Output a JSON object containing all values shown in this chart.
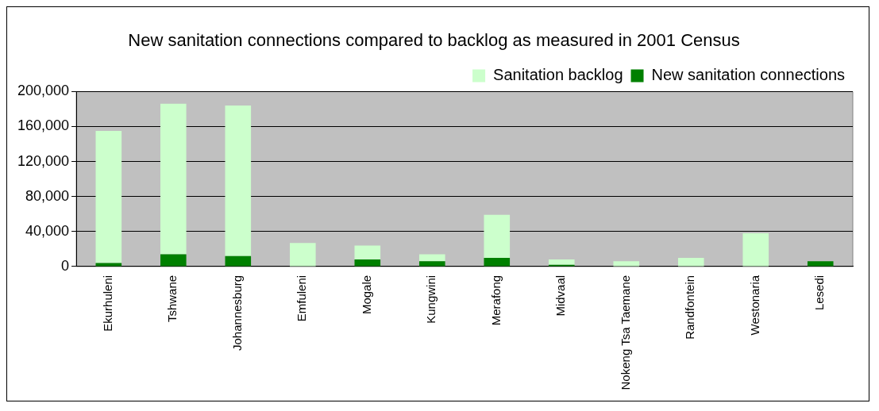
{
  "chart_data": {
    "type": "bar",
    "title": "New sanitation connections compared to backlog as measured in 2001 Census",
    "categories": [
      "Ekurhuleni",
      "Tshwane",
      "Johannesburg",
      "Emfuleni",
      "Mogale",
      "Kungwini",
      "Merafong",
      "Midvaal",
      "Nokeng Tsa Taemane",
      "Randfontein",
      "Westonaria",
      "Lesedi"
    ],
    "series": [
      {
        "name": "New sanitation connections",
        "color": "#008000",
        "values": [
          4000,
          14000,
          12000,
          0,
          8000,
          6000,
          10000,
          2000,
          0,
          0,
          0,
          6000
        ]
      },
      {
        "name": "Sanitation backlog",
        "color": "#ccffcc",
        "values": [
          151000,
          172000,
          172000,
          27000,
          16000,
          8000,
          49000,
          6000,
          6000,
          10000,
          38000,
          0
        ]
      }
    ],
    "stacked": true,
    "ylim": [
      0,
      200000
    ],
    "yticks": [
      {
        "value": 0,
        "label": "0"
      },
      {
        "value": 40000,
        "label": "40,000"
      },
      {
        "value": 80000,
        "label": "80,000"
      },
      {
        "value": 120000,
        "label": "120,000"
      },
      {
        "value": 160000,
        "label": "160,000"
      },
      {
        "value": 200000,
        "label": "200,000"
      }
    ],
    "grid": "y",
    "legend": "top right"
  }
}
